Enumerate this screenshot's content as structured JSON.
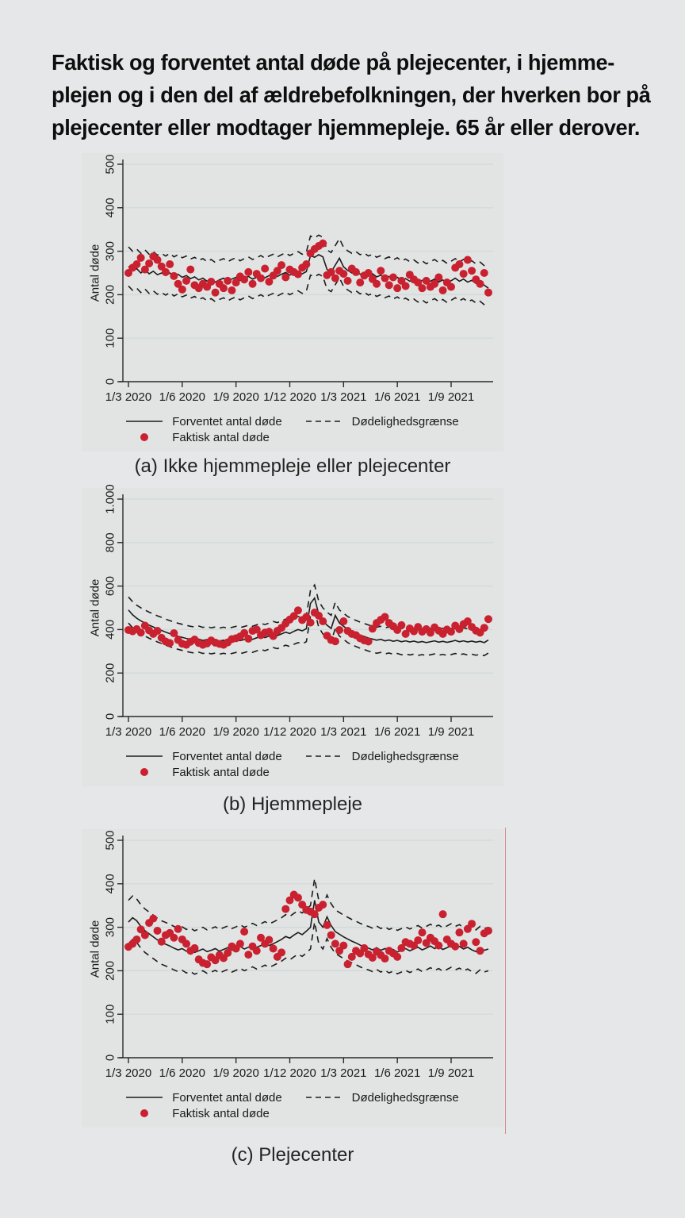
{
  "title": {
    "lines": [
      "Faktisk og forventet antal døde på plejecenter, i hjemme-",
      "plejen og i den del af ældrebefolkningen, der hverken bor på",
      "plejecenter eller modtager hjemmepleje. 65 år eller derover."
    ]
  },
  "legend": {
    "expected": "Forventet antal døde",
    "limit": "Dødelighedsgrænse",
    "actual": "Faktisk antal døde"
  },
  "colors": {
    "dot": "#c92130",
    "line": "#1c1c1c",
    "grid": "#cedbd9",
    "axis": "#2b2b2b",
    "panel_bg": "#e2e3e3",
    "page_bg": "#e6e7e8",
    "artifact_line": "#d48a8a"
  },
  "band_note": "Dashed Dødelighedsgrænse lines are expected values plus/minus band_offset. Data are weekly, week 0 = 1/3 2020.",
  "chart_data": [
    {
      "type": "line",
      "caption": "(a) Ikke hjemmepleje eller plejecenter",
      "y_axis": {
        "title": "Antal døde",
        "max": 500,
        "tick_values": [
          0,
          100,
          200,
          300,
          400,
          500
        ],
        "tick_labels": [
          "0",
          "100",
          "200",
          "300",
          "400",
          "500"
        ]
      },
      "x_axis": {
        "tick_weeks": [
          0,
          13,
          26,
          39,
          52,
          65,
          78
        ],
        "tick_labels": [
          "1/3 2020",
          "1/6 2020",
          "1/9 2020",
          "1/12 2020",
          "1/3 2021",
          "1/6 2021",
          "1/9 2021"
        ]
      },
      "series": {
        "band_offset": 45,
        "expected": [
          265,
          255,
          260,
          250,
          258,
          248,
          254,
          246,
          250,
          244,
          250,
          242,
          247,
          240,
          244,
          237,
          241,
          234,
          238,
          231,
          236,
          229,
          234,
          238,
          231,
          236,
          240,
          233,
          238,
          242,
          236,
          240,
          245,
          239,
          244,
          248,
          242,
          247,
          251,
          245,
          250,
          254,
          248,
          253,
          290,
          286,
          292,
          287,
          258,
          252,
          268,
          284,
          264,
          256,
          250,
          254,
          247,
          251,
          244,
          248,
          241,
          245,
          238,
          242,
          235,
          240,
          233,
          237,
          231,
          235,
          228,
          233,
          226,
          231,
          236,
          229,
          234,
          227,
          232,
          238,
          231,
          236,
          229,
          233,
          226,
          230,
          222,
          215
        ],
        "actual": [
          250,
          262,
          270,
          285,
          258,
          272,
          288,
          280,
          265,
          252,
          270,
          243,
          225,
          212,
          232,
          258,
          222,
          215,
          225,
          218,
          230,
          205,
          225,
          215,
          232,
          210,
          228,
          242,
          235,
          252,
          225,
          248,
          238,
          260,
          230,
          244,
          255,
          268,
          240,
          258,
          252,
          247,
          262,
          270,
          295,
          305,
          312,
          318,
          245,
          252,
          238,
          255,
          248,
          232,
          260,
          252,
          228,
          244,
          250,
          236,
          225,
          255,
          238,
          222,
          240,
          215,
          232,
          220,
          246,
          235,
          228,
          215,
          232,
          218,
          225,
          240,
          210,
          228,
          218,
          262,
          270,
          248,
          280,
          255,
          235,
          225,
          250,
          205
        ]
      }
    },
    {
      "type": "line",
      "caption": "(b) Hjemmepleje",
      "y_axis": {
        "title": "Antal døde",
        "max": 1000,
        "tick_values": [
          0,
          200,
          400,
          600,
          800,
          1000
        ],
        "tick_labels": [
          "0",
          "200",
          "400",
          "600",
          "800",
          "1.000"
        ]
      },
      "x_axis": {
        "tick_weeks": [
          0,
          13,
          26,
          39,
          52,
          65,
          78
        ],
        "tick_labels": [
          "1/3 2020",
          "1/6 2020",
          "1/9 2020",
          "1/12 2020",
          "1/3 2021",
          "1/6 2021",
          "1/9 2021"
        ]
      },
      "series": {
        "band_offset": 60,
        "expected": [
          490,
          468,
          452,
          440,
          430,
          420,
          412,
          403,
          396,
          388,
          381,
          375,
          369,
          364,
          359,
          355,
          352,
          356,
          350,
          354,
          348,
          352,
          347,
          351,
          346,
          350,
          355,
          349,
          354,
          360,
          355,
          362,
          368,
          363,
          370,
          377,
          372,
          380,
          388,
          382,
          392,
          400,
          394,
          404,
          520,
          545,
          470,
          440,
          420,
          405,
          465,
          430,
          415,
          400,
          390,
          382,
          374,
          368,
          361,
          356,
          351,
          355,
          348,
          352,
          346,
          350,
          344,
          348,
          343,
          347,
          341,
          345,
          340,
          344,
          348,
          342,
          346,
          341,
          345,
          350,
          344,
          348,
          343,
          347,
          342,
          346,
          340,
          352
        ],
        "actual": [
          398,
          392,
          402,
          386,
          418,
          396,
          380,
          394,
          362,
          345,
          338,
          383,
          352,
          335,
          330,
          344,
          354,
          338,
          330,
          336,
          350,
          340,
          334,
          330,
          341,
          356,
          360,
          368,
          384,
          358,
          394,
          400,
          374,
          386,
          390,
          370,
          394,
          408,
          428,
          446,
          462,
          488,
          444,
          458,
          432,
          478,
          464,
          438,
          372,
          352,
          346,
          398,
          438,
          394,
          380,
          374,
          360,
          350,
          345,
          404,
          430,
          445,
          458,
          430,
          415,
          398,
          420,
          380,
          405,
          392,
          412,
          390,
          402,
          385,
          410,
          395,
          380,
          400,
          390,
          418,
          402,
          425,
          438,
          412,
          395,
          386,
          408,
          448
        ]
      }
    },
    {
      "type": "line",
      "caption": "(c) Plejecenter",
      "y_axis": {
        "title": "Antal døde",
        "max": 500,
        "tick_values": [
          0,
          100,
          200,
          300,
          400,
          500
        ],
        "tick_labels": [
          "0",
          "100",
          "200",
          "300",
          "400",
          "500"
        ]
      },
      "x_axis": {
        "tick_weeks": [
          0,
          13,
          26,
          39,
          52,
          65,
          78
        ],
        "tick_labels": [
          "1/3 2020",
          "1/6 2020",
          "1/9 2020",
          "1/12 2020",
          "1/3 2021",
          "1/6 2021",
          "1/9 2021"
        ]
      },
      "series": {
        "band_offset": 50,
        "expected": [
          312,
          322,
          315,
          302,
          292,
          285,
          278,
          271,
          265,
          261,
          257,
          252,
          248,
          251,
          245,
          248,
          242,
          246,
          250,
          244,
          247,
          251,
          245,
          249,
          253,
          247,
          251,
          256,
          250,
          254,
          259,
          254,
          258,
          263,
          258,
          262,
          267,
          272,
          279,
          275,
          282,
          288,
          283,
          291,
          300,
          362,
          312,
          300,
          324,
          304,
          290,
          284,
          278,
          273,
          268,
          264,
          259,
          255,
          252,
          248,
          253,
          247,
          251,
          245,
          249,
          243,
          247,
          251,
          246,
          250,
          254,
          248,
          252,
          257,
          251,
          255,
          249,
          253,
          258,
          252,
          256,
          250,
          254,
          248,
          244,
          252,
          247,
          250
        ],
        "actual": [
          255,
          262,
          272,
          295,
          282,
          310,
          320,
          292,
          267,
          282,
          287,
          276,
          296,
          272,
          262,
          246,
          252,
          226,
          218,
          215,
          231,
          224,
          236,
          229,
          241,
          256,
          251,
          262,
          290,
          237,
          256,
          246,
          276,
          262,
          271,
          251,
          232,
          242,
          342,
          362,
          375,
          368,
          352,
          340,
          336,
          330,
          345,
          352,
          305,
          282,
          262,
          246,
          258,
          215,
          232,
          246,
          240,
          252,
          238,
          230,
          244,
          236,
          228,
          246,
          240,
          232,
          252,
          266,
          262,
          258,
          270,
          288,
          264,
          276,
          268,
          258,
          330,
          272,
          262,
          256,
          288,
          262,
          296,
          308,
          266,
          246,
          286,
          292
        ]
      }
    }
  ]
}
